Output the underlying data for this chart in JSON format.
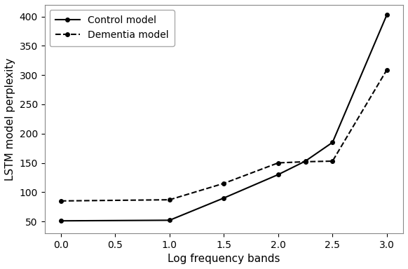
{
  "control_x": [
    0.0,
    1.0,
    1.5,
    2.0,
    2.25,
    2.5,
    3.0
  ],
  "control_y": [
    51,
    52,
    90,
    130,
    153,
    185,
    403
  ],
  "dementia_x": [
    0.0,
    1.0,
    1.5,
    2.0,
    2.25,
    2.5,
    3.0
  ],
  "dementia_y": [
    85,
    87,
    115,
    150,
    152,
    153,
    309
  ],
  "control_label": "Control model",
  "dementia_label": "Dementia model",
  "xlabel": "Log frequency bands",
  "ylabel": "LSTM model perplexity",
  "xlim": [
    -0.15,
    3.15
  ],
  "ylim": [
    30,
    420
  ],
  "xticks": [
    0.0,
    0.5,
    1.0,
    1.5,
    2.0,
    2.5,
    3.0
  ],
  "yticks": [
    50,
    100,
    150,
    200,
    250,
    300,
    350,
    400
  ],
  "line_color": "#000000",
  "marker": "o",
  "marker_size": 4,
  "linewidth": 1.5,
  "background_color": "#ffffff",
  "axes_facecolor": "#ffffff",
  "legend_loc": "upper left",
  "legend_fontsize": 10,
  "tick_fontsize": 10,
  "label_fontsize": 11
}
